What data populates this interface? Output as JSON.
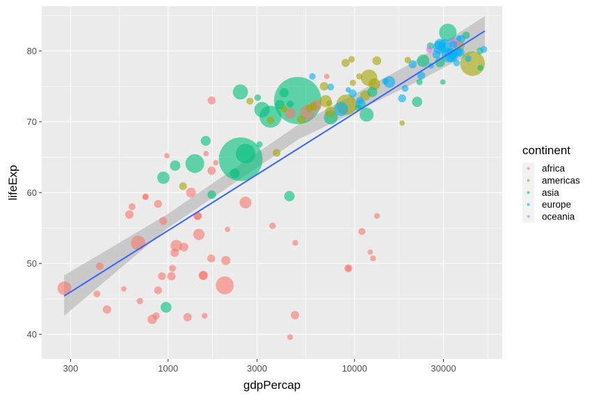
{
  "chart_data": {
    "type": "scatter",
    "xlabel": "gdpPercap",
    "ylabel": "lifeExp",
    "x_scale": "log10",
    "xlim": [
      210,
      62000
    ],
    "ylim": [
      36.5,
      86.3
    ],
    "x_ticks": [
      300,
      1000,
      3000,
      10000,
      30000
    ],
    "x_tick_labels": [
      "300",
      "1000",
      "3000",
      "10000",
      "30000"
    ],
    "y_ticks": [
      40,
      50,
      60,
      70,
      80
    ],
    "y_tick_labels": [
      "40",
      "50",
      "60",
      "70",
      "80"
    ],
    "grid": true,
    "legend": {
      "title": "continent",
      "placement": "right"
    },
    "colors": {
      "africa": "#F8766D",
      "americas": "#A3A500",
      "asia": "#00BF7D",
      "europe": "#00B0F6",
      "oceania": "#E76BF3",
      "panel": "#EBEBEB",
      "grid": "#FFFFFF",
      "smooth_line": "#3366FF",
      "ribbon": "#BDBDBD"
    },
    "smooth": {
      "method": "lm",
      "line": [
        [
          277,
          45.4
        ],
        [
          50000,
          82.8
        ]
      ],
      "ribbon_lower": [
        [
          277,
          42.6
        ],
        [
          1000,
          55.0
        ],
        [
          5000,
          67.5
        ],
        [
          20000,
          75.2
        ],
        [
          50000,
          80.6
        ]
      ],
      "ribbon_upper": [
        [
          277,
          48.3
        ],
        [
          1000,
          57.0
        ],
        [
          5000,
          69.6
        ],
        [
          20000,
          78.2
        ],
        [
          50000,
          84.9
        ]
      ]
    },
    "series": [
      {
        "name": "africa",
        "points": [
          [
            6223,
            72.3,
            33
          ],
          [
            4797,
            42.7,
            12
          ],
          [
            1441,
            56.7,
            8
          ],
          [
            12570,
            50.7,
            2
          ],
          [
            1217,
            52.3,
            15
          ],
          [
            430,
            49.6,
            8
          ],
          [
            2042,
            50.4,
            18
          ],
          [
            706,
            44.7,
            4
          ],
          [
            1704,
            50.7,
            10
          ],
          [
            986,
            65.2,
            1
          ],
          [
            278,
            46.5,
            65
          ],
          [
            3633,
            55.3,
            4
          ],
          [
            1545,
            48.3,
            18
          ],
          [
            2082,
            54.8,
            1
          ],
          [
            5581,
            71.3,
            80
          ],
          [
            12154,
            51.6,
            1
          ],
          [
            641,
            58.0,
            5
          ],
          [
            691,
            52.9,
            76
          ],
          [
            13206,
            56.7,
            2
          ],
          [
            753,
            59.4,
            2
          ],
          [
            1327,
            60.0,
            23
          ],
          [
            943,
            56.0,
            10
          ],
          [
            579,
            46.4,
            1
          ],
          [
            1463,
            54.1,
            35
          ],
          [
            1570,
            42.6,
            2
          ],
          [
            9270,
            49.3,
            2
          ],
          [
            10955,
            54.5,
            6
          ],
          [
            415,
            45.7,
            5
          ],
          [
            759,
            59.4,
            3
          ],
          [
            1043,
            48.2,
            12
          ],
          [
            1803,
            64.2,
            1
          ],
          [
            1712,
            73.0,
            10
          ],
          [
            4513,
            71.2,
            33
          ],
          [
            823,
            42.1,
            20
          ],
          [
            4811,
            52.9,
            2
          ],
          [
            620,
            56.9,
            13
          ],
          [
            2014,
            46.9,
            135
          ],
          [
            883,
            46.2,
            9
          ],
          [
            1598,
            65.5,
            1
          ],
          [
            1712,
            63.1,
            12
          ],
          [
            863,
            42.6,
            6
          ],
          [
            926,
            48.2,
            9
          ],
          [
            9270,
            49.3,
            10
          ],
          [
            2602,
            58.6,
            42
          ],
          [
            4513,
            39.6,
            2
          ],
          [
            1107,
            52.5,
            39
          ],
          [
            1056,
            49.3,
            5
          ],
          [
            883,
            58.4,
            10
          ],
          [
            7093,
            76.4,
            1
          ],
          [
            1271,
            42.4,
            12
          ],
          [
            470,
            43.5,
            12
          ],
          [
            1086,
            51.5,
            12
          ],
          [
            1544,
            48.3,
            12
          ],
          [
            1441,
            56.7,
            12
          ]
        ]
      },
      {
        "name": "americas",
        "points": [
          [
            12779,
            75.3,
            40
          ],
          [
            3822,
            65.6,
            9
          ],
          [
            9066,
            72.4,
            190
          ],
          [
            36319,
            80.7,
            33
          ],
          [
            13172,
            78.6,
            16
          ],
          [
            7007,
            72.9,
            44
          ],
          [
            9645,
            78.8,
            4
          ],
          [
            8948,
            78.3,
            11
          ],
          [
            6025,
            72.2,
            9
          ],
          [
            6873,
            75.0,
            14
          ],
          [
            5728,
            71.9,
            7
          ],
          [
            5186,
            70.3,
            13
          ],
          [
            1202,
            60.9,
            9
          ],
          [
            3548,
            70.2,
            7
          ],
          [
            7321,
            72.6,
            3
          ],
          [
            11978,
            76.2,
            108
          ],
          [
            2749,
            72.9,
            6
          ],
          [
            9809,
            75.5,
            3
          ],
          [
            4173,
            71.8,
            6
          ],
          [
            7409,
            71.4,
            28
          ],
          [
            19329,
            78.7,
            4
          ],
          [
            18009,
            69.8,
            1
          ],
          [
            42952,
            78.2,
            301
          ],
          [
            10611,
            76.4,
            3
          ],
          [
            11416,
            73.7,
            26
          ]
        ]
      },
      {
        "name": "asia",
        "points": [
          [
            975,
            43.8,
            32
          ],
          [
            29796,
            75.6,
            1
          ],
          [
            1391,
            64.1,
            150
          ],
          [
            1714,
            59.7,
            14
          ],
          [
            4959,
            73.0,
            1318
          ],
          [
            39725,
            82.2,
            7
          ],
          [
            2452,
            64.7,
            1110
          ],
          [
            3541,
            70.7,
            224
          ],
          [
            11606,
            71.0,
            69
          ],
          [
            4471,
            59.5,
            28
          ],
          [
            25523,
            80.7,
            6
          ],
          [
            31656,
            82.6,
            127
          ],
          [
            4519,
            72.5,
            6
          ],
          [
            1593,
            67.3,
            23
          ],
          [
            23348,
            78.6,
            49
          ],
          [
            47307,
            77.6,
            2
          ],
          [
            10461,
            72.0,
            4
          ],
          [
            12452,
            74.2,
            24
          ],
          [
            3096,
            66.8,
            3
          ],
          [
            944,
            62.1,
            47
          ],
          [
            1091,
            63.8,
            28
          ],
          [
            22316,
            75.6,
            3
          ],
          [
            2606,
            65.5,
            169
          ],
          [
            3190,
            71.7,
            91
          ],
          [
            21655,
            72.8,
            27
          ],
          [
            47143,
            80.0,
            5
          ],
          [
            3970,
            72.4,
            20
          ],
          [
            4185,
            74.1,
            19
          ],
          [
            28718,
            78.4,
            23
          ],
          [
            7458,
            70.6,
            65
          ],
          [
            2442,
            74.2,
            85
          ],
          [
            3026,
            73.4,
            4
          ],
          [
            2281,
            62.7,
            22
          ]
        ]
      },
      {
        "name": "europe",
        "points": [
          [
            5937,
            76.4,
            4
          ],
          [
            36126,
            79.8,
            8
          ],
          [
            33693,
            79.4,
            10
          ],
          [
            7446,
            74.9,
            5
          ],
          [
            10681,
            73.0,
            7
          ],
          [
            14619,
            75.7,
            4
          ],
          [
            22833,
            76.5,
            10
          ],
          [
            35278,
            78.3,
            5
          ],
          [
            33207,
            79.3,
            5
          ],
          [
            30470,
            80.7,
            61
          ],
          [
            32170,
            79.4,
            82
          ],
          [
            27538,
            79.5,
            11
          ],
          [
            18009,
            73.3,
            10
          ],
          [
            36181,
            81.8,
            1
          ],
          [
            40676,
            78.9,
            4
          ],
          [
            28570,
            80.5,
            58
          ],
          [
            9254,
            74.5,
            1
          ],
          [
            36798,
            79.8,
            16
          ],
          [
            49357,
            80.2,
            5
          ],
          [
            15390,
            75.6,
            38
          ],
          [
            20510,
            78.1,
            11
          ],
          [
            10808,
            72.5,
            22
          ],
          [
            9787,
            74.0,
            10
          ],
          [
            18678,
            74.7,
            5
          ],
          [
            25768,
            77.9,
            2
          ],
          [
            28821,
            80.9,
            40
          ],
          [
            33860,
            80.9,
            9
          ],
          [
            37506,
            81.7,
            8
          ],
          [
            8458,
            71.8,
            71
          ],
          [
            33203,
            79.4,
            61
          ]
        ]
      },
      {
        "name": "oceania",
        "points": [
          [
            34435,
            81.2,
            20
          ],
          [
            25185,
            80.2,
            4
          ]
        ]
      }
    ]
  }
}
